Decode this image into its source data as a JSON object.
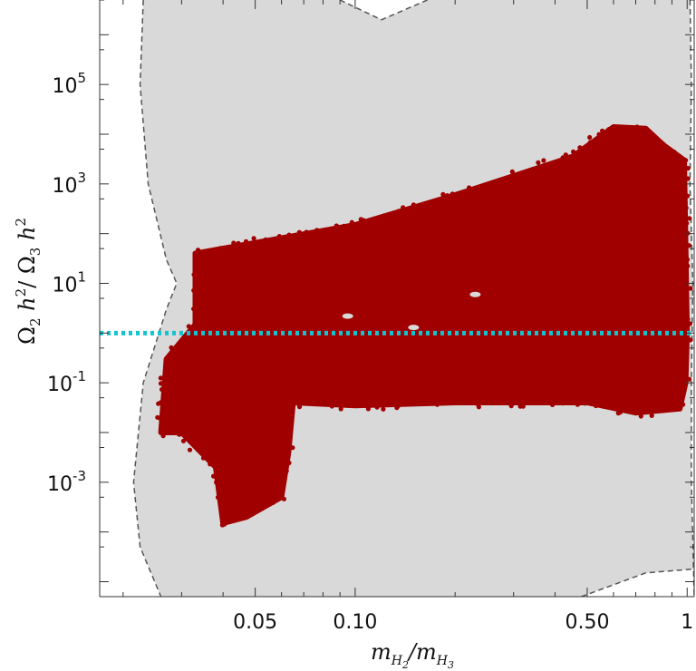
{
  "chart_data": {
    "type": "scatter",
    "title": "",
    "xlabel": "m_{H_2}/m_{H_3}",
    "ylabel": "Ω_2 h^2/ Ω_3 h^2",
    "x_scale": "log",
    "y_scale": "log",
    "xlim": [
      0.017,
      1.05
    ],
    "ylim": [
      5e-06,
      5000000
    ],
    "x_ticks": [
      {
        "value": 0.05,
        "label": "0.05"
      },
      {
        "value": 0.1,
        "label": "0.10"
      },
      {
        "value": 0.5,
        "label": "0.50"
      },
      {
        "value": 1,
        "label": "1"
      }
    ],
    "y_ticks": [
      {
        "value": 0.001,
        "base": "10",
        "exp": "-3"
      },
      {
        "value": 0.1,
        "base": "10",
        "exp": "-1"
      },
      {
        "value": 10,
        "base": "10",
        "exp": "1"
      },
      {
        "value": 1000,
        "base": "10",
        "exp": "3"
      },
      {
        "value": 100000,
        "base": "10",
        "exp": "5"
      }
    ],
    "reference_line": {
      "y": 1,
      "style": "dotted",
      "color": "#12c4cf"
    },
    "colors": {
      "allowed_region": "#d9d9d9",
      "points": "#a00000",
      "boundary": "#555555"
    },
    "allowed_region_boundary": {
      "left": [
        [
          0.023,
          5000000
        ],
        [
          0.0225,
          100000
        ],
        [
          0.0238,
          1000
        ],
        [
          0.027,
          30
        ],
        [
          0.029,
          10
        ],
        [
          0.027,
          3
        ],
        [
          0.023,
          0.1
        ],
        [
          0.0215,
          0.001
        ],
        [
          0.0225,
          5e-05
        ],
        [
          0.026,
          5e-06
        ]
      ],
      "right": [
        [
          1.02,
          5000000
        ],
        [
          1.03,
          100000
        ],
        [
          1.02,
          1000
        ],
        [
          1.04,
          10
        ],
        [
          1.03,
          0.1
        ],
        [
          1.03,
          0.001
        ],
        [
          1.05,
          5e-06
        ]
      ],
      "top_notch": [
        [
          0.09,
          5000000
        ],
        [
          0.12,
          2000000
        ],
        [
          0.165,
          5000000
        ]
      ],
      "bottom_notch": [
        [
          0.48,
          5e-06
        ],
        [
          0.75,
          1.5e-05
        ],
        [
          1.05,
          1.8e-05
        ]
      ]
    },
    "series": [
      {
        "points_region": [
          [
            0.033,
            40
          ],
          [
            0.1,
            150
          ],
          [
            0.2,
            600
          ],
          [
            0.45,
            3500
          ],
          [
            0.6,
            14000
          ],
          [
            0.75,
            13000
          ],
          [
            0.85,
            6000
          ],
          [
            0.98,
            3000
          ],
          [
            1.0,
            1
          ],
          [
            0.99,
            0.1
          ],
          [
            0.95,
            0.03
          ],
          [
            0.7,
            0.025
          ],
          [
            0.5,
            0.04
          ],
          [
            0.2,
            0.04
          ],
          [
            0.1,
            0.035
          ],
          [
            0.065,
            0.04
          ],
          [
            0.063,
            0.004
          ],
          [
            0.06,
            0.0005
          ],
          [
            0.047,
            0.0002
          ],
          [
            0.04,
            0.00015
          ],
          [
            0.038,
            0.002
          ],
          [
            0.03,
            0.01
          ],
          [
            0.026,
            0.01
          ],
          [
            0.027,
            0.3
          ],
          [
            0.033,
            1.5
          ]
        ],
        "gaps": [
          [
            0.095,
            2.2
          ],
          [
            0.15,
            1.3
          ],
          [
            0.23,
            6
          ]
        ]
      }
    ]
  }
}
